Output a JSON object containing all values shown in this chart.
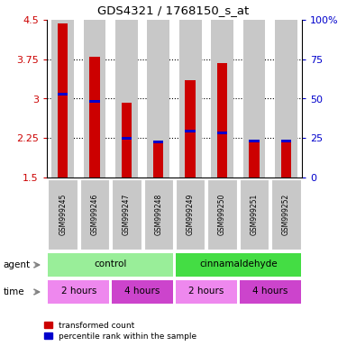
{
  "title": "GDS4321 / 1768150_s_at",
  "samples": [
    "GSM999245",
    "GSM999246",
    "GSM999247",
    "GSM999248",
    "GSM999249",
    "GSM999250",
    "GSM999251",
    "GSM999252"
  ],
  "red_values": [
    4.43,
    3.8,
    2.93,
    2.18,
    3.35,
    3.68,
    2.2,
    2.18
  ],
  "blue_values": [
    3.08,
    2.95,
    2.25,
    2.18,
    2.38,
    2.35,
    2.2,
    2.2
  ],
  "y_min": 1.5,
  "y_max": 4.5,
  "y_ticks_left": [
    1.5,
    2.25,
    3.0,
    3.75,
    4.5
  ],
  "y_ticks_right": [
    0,
    25,
    50,
    75,
    100
  ],
  "agent_groups": [
    {
      "label": "control",
      "start": 0,
      "end": 4,
      "color": "#99EE99"
    },
    {
      "label": "cinnamaldehyde",
      "start": 4,
      "end": 8,
      "color": "#44DD44"
    }
  ],
  "time_groups": [
    {
      "label": "2 hours",
      "start": 0,
      "end": 2,
      "color": "#EE88EE"
    },
    {
      "label": "4 hours",
      "start": 2,
      "end": 4,
      "color": "#CC44CC"
    },
    {
      "label": "2 hours",
      "start": 4,
      "end": 6,
      "color": "#EE88EE"
    },
    {
      "label": "4 hours",
      "start": 6,
      "end": 8,
      "color": "#CC44CC"
    }
  ],
  "bar_bg_color": "#C8C8C8",
  "red_color": "#CC0000",
  "blue_color": "#0000CC",
  "axis_label_color_left": "#CC0000",
  "axis_label_color_right": "#0000CC",
  "legend_labels": [
    "transformed count",
    "percentile rank within the sample"
  ]
}
